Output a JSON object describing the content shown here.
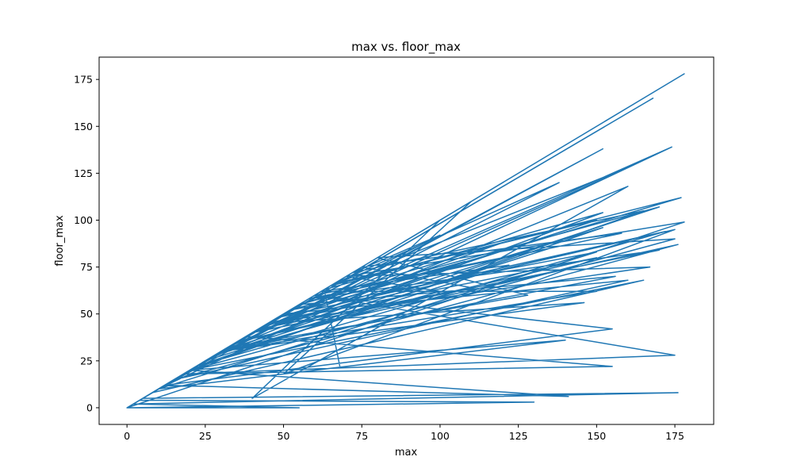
{
  "chart_data": {
    "type": "line",
    "title": "max vs. floor_max",
    "xlabel": "max",
    "ylabel": "floor_max",
    "xlim": [
      -8.9,
      187.4
    ],
    "ylim": [
      -8.9,
      186.9
    ],
    "x_ticks": [
      0,
      25,
      50,
      75,
      100,
      125,
      150,
      175
    ],
    "y_ticks": [
      0,
      25,
      50,
      75,
      100,
      125,
      150,
      175
    ],
    "grid": false,
    "line_color": "#1f77b4",
    "series": [
      {
        "x": [
          0,
          178,
          10,
          152,
          20,
          120,
          5,
          176,
          2,
          55,
          0,
          130,
          4,
          100,
          30,
          160,
          40,
          100,
          60,
          155,
          12,
          141,
          20,
          165,
          8,
          110,
          35,
          150,
          45,
          175,
          50,
          110,
          15,
          140,
          25,
          122,
          62,
          150,
          30,
          170,
          55,
          105,
          38,
          155,
          18,
          175,
          60,
          135,
          28,
          100,
          70,
          178,
          0,
          168,
          10,
          174,
          40,
          152,
          22,
          172,
          48,
          177,
          65,
          160,
          32,
          128,
          80,
          175,
          20,
          90,
          70,
          167,
          45,
          146,
          30,
          156,
          55,
          120,
          42,
          110,
          75,
          158,
          58,
          170,
          40,
          150,
          66,
          138,
          25,
          95,
          35,
          176,
          15,
          160,
          50,
          100,
          72,
          165,
          20,
          140,
          10,
          150,
          52,
          108,
          28,
          152,
          63,
          68
        ],
        "y": [
          0,
          178,
          10,
          138,
          20,
          120,
          5,
          8,
          2,
          0,
          0,
          3,
          4,
          100,
          30,
          118,
          5,
          100,
          60,
          42,
          12,
          6,
          20,
          68,
          8,
          110,
          35,
          80,
          45,
          95,
          18,
          110,
          15,
          140,
          25,
          76,
          62,
          62,
          30,
          107,
          55,
          105,
          38,
          22,
          18,
          28,
          60,
          85,
          28,
          62,
          70,
          99,
          0,
          165,
          10,
          139,
          40,
          96,
          22,
          94,
          48,
          112,
          65,
          128,
          32,
          60,
          80,
          90,
          20,
          90,
          70,
          75,
          45,
          56,
          30,
          70,
          55,
          88,
          42,
          64,
          75,
          93,
          58,
          84,
          40,
          100,
          66,
          120,
          25,
          95,
          35,
          87,
          15,
          68,
          50,
          92,
          72,
          105,
          20,
          36,
          10,
          83,
          52,
          78,
          28,
          104,
          63,
          22
        ]
      }
    ]
  }
}
